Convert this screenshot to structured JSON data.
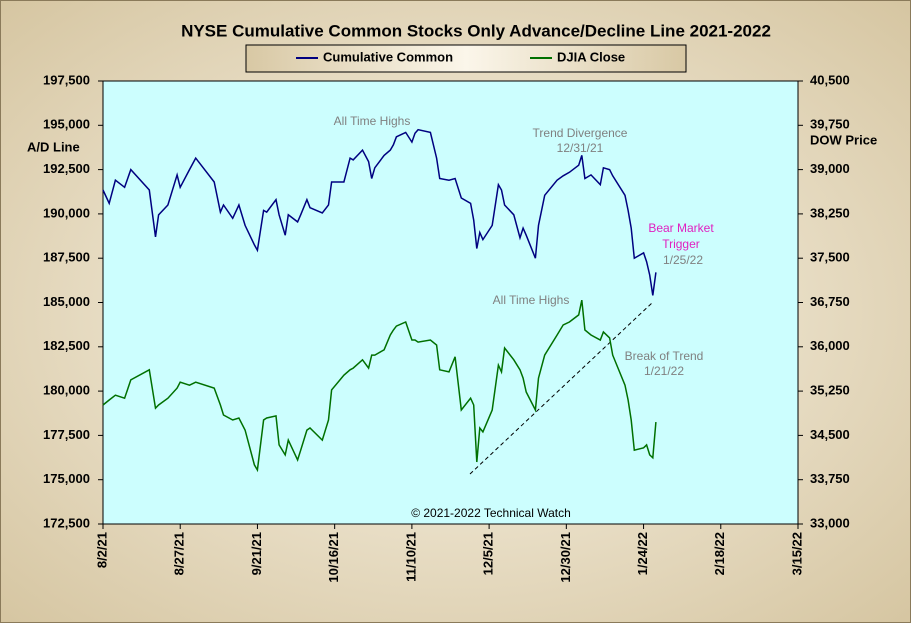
{
  "chart_data": {
    "type": "line",
    "title": "NYSE Cumulative  Common Stocks Only Advance/Decline Line 2021-2022",
    "ylabel": "A/D Line",
    "y2label": "DOW Price",
    "legend": "top",
    "credit": "© 2021-2022  Technical Watch",
    "x": [
      "2021-08-02",
      "2021-08-04",
      "2021-08-06",
      "2021-08-09",
      "2021-08-11",
      "2021-08-17",
      "2021-08-19",
      "2021-08-20",
      "2021-08-23",
      "2021-08-26",
      "2021-08-27",
      "2021-08-30",
      "2021-09-01",
      "2021-09-07",
      "2021-09-09",
      "2021-09-10",
      "2021-09-13",
      "2021-09-15",
      "2021-09-17",
      "2021-09-20",
      "2021-09-21",
      "2021-09-23",
      "2021-09-24",
      "2021-09-27",
      "2021-09-28",
      "2021-09-30",
      "2021-10-01",
      "2021-10-04",
      "2021-10-05",
      "2021-10-07",
      "2021-10-08",
      "2021-10-12",
      "2021-10-14",
      "2021-10-15",
      "2021-10-19",
      "2021-10-21",
      "2021-10-22",
      "2021-10-25",
      "2021-10-27",
      "2021-10-28",
      "2021-10-29",
      "2021-11-01",
      "2021-11-03",
      "2021-11-04",
      "2021-11-05",
      "2021-11-08",
      "2021-11-10",
      "2021-11-11",
      "2021-11-12",
      "2021-11-16",
      "2021-11-18",
      "2021-11-19",
      "2021-11-22",
      "2021-11-24",
      "2021-11-26",
      "2021-11-29",
      "2021-11-30",
      "2021-12-01",
      "2021-12-02",
      "2021-12-03",
      "2021-12-06",
      "2021-12-08",
      "2021-12-09",
      "2021-12-10",
      "2021-12-13",
      "2021-12-15",
      "2021-12-16",
      "2021-12-17",
      "2021-12-20",
      "2021-12-21",
      "2021-12-23",
      "2021-12-27",
      "2021-12-29",
      "2021-12-31",
      "2022-01-03",
      "2022-01-04",
      "2022-01-05",
      "2022-01-07",
      "2022-01-10",
      "2022-01-11",
      "2022-01-13",
      "2022-01-14",
      "2022-01-18",
      "2022-01-19",
      "2022-01-20",
      "2022-01-21",
      "2022-01-24",
      "2022-01-25",
      "2022-01-26",
      "2022-01-27",
      "2022-01-28"
    ],
    "series": [
      {
        "name": "Cumulative Common",
        "color": "#000080",
        "values": [
          191350,
          190600,
          191900,
          191500,
          192500,
          191350,
          188700,
          189950,
          190500,
          192200,
          191500,
          192500,
          193150,
          191800,
          190100,
          190500,
          189750,
          190500,
          189350,
          188250,
          187950,
          190200,
          190100,
          190800,
          189950,
          188800,
          189950,
          189550,
          189950,
          190800,
          190350,
          190050,
          190500,
          191800,
          191800,
          193150,
          193050,
          193600,
          192950,
          192000,
          192600,
          193300,
          193600,
          193900,
          194350,
          194600,
          194050,
          194550,
          194750,
          194600,
          193150,
          192000,
          191900,
          192000,
          190900,
          190600,
          189650,
          188050,
          188950,
          188550,
          189350,
          191650,
          191350,
          190500,
          189950,
          188650,
          189200,
          188800,
          187500,
          189350,
          191050,
          191900,
          192150,
          192350,
          192750,
          193300,
          192000,
          192200,
          191650,
          192600,
          192500,
          192150,
          191050,
          190200,
          189200,
          187500,
          187800,
          187300,
          186550,
          185400,
          186700
        ]
      },
      {
        "name": "DJIA Close",
        "color": "#007000",
        "axis": "y2",
        "values": [
          35015,
          35100,
          35180,
          35130,
          35440,
          35610,
          34960,
          35015,
          35130,
          35300,
          35400,
          35350,
          35400,
          35300,
          35015,
          34845,
          34760,
          34795,
          34590,
          34000,
          33915,
          34760,
          34795,
          34830,
          34340,
          34170,
          34420,
          34085,
          34250,
          34590,
          34625,
          34420,
          34760,
          35270,
          35520,
          35610,
          35640,
          35780,
          35640,
          35860,
          35860,
          35950,
          36200,
          36285,
          36350,
          36420,
          36115,
          36115,
          36080,
          36115,
          36030,
          35610,
          35575,
          35830,
          34930,
          35130,
          35015,
          34050,
          34625,
          34560,
          34930,
          35690,
          35575,
          35980,
          35780,
          35610,
          35470,
          35235,
          34930,
          35470,
          35860,
          36200,
          36370,
          36420,
          36540,
          36790,
          36285,
          36200,
          36115,
          36250,
          36150,
          35860,
          35350,
          35100,
          34760,
          34250,
          34290,
          34340,
          34170,
          34120,
          34725
        ]
      }
    ],
    "xlim": [
      "2021-08-02",
      "2022-03-15"
    ],
    "xticks": [
      {
        "value": "2021-08-02",
        "label": "8/2/21"
      },
      {
        "value": "2021-08-27",
        "label": "8/27/21"
      },
      {
        "value": "2021-09-21",
        "label": "9/21/21"
      },
      {
        "value": "2021-10-16",
        "label": "10/16/21"
      },
      {
        "value": "2021-11-10",
        "label": "11/10/21"
      },
      {
        "value": "2021-12-05",
        "label": "12/5/21"
      },
      {
        "value": "2021-12-30",
        "label": "12/30/21"
      },
      {
        "value": "2022-01-24",
        "label": "1/24/22"
      },
      {
        "value": "2022-02-18",
        "label": "2/18/22"
      },
      {
        "value": "2022-03-15",
        "label": "3/15/22"
      }
    ],
    "ylim": [
      172500,
      197500
    ],
    "yticks": [
      {
        "value": 172500,
        "label": "172,500"
      },
      {
        "value": 175000,
        "label": "175,000"
      },
      {
        "value": 177500,
        "label": "177,500"
      },
      {
        "value": 180000,
        "label": "180,000"
      },
      {
        "value": 182500,
        "label": "182,500"
      },
      {
        "value": 185000,
        "label": "185,000"
      },
      {
        "value": 187500,
        "label": "187,500"
      },
      {
        "value": 190000,
        "label": "190,000"
      },
      {
        "value": 192500,
        "label": "192,500"
      },
      {
        "value": 195000,
        "label": "195,000"
      },
      {
        "value": 197500,
        "label": "197,500"
      }
    ],
    "y2lim": [
      33000,
      40500
    ],
    "y2ticks": [
      {
        "value": 33000,
        "label": "33,000"
      },
      {
        "value": 33750,
        "label": "33,750"
      },
      {
        "value": 34500,
        "label": "34,500"
      },
      {
        "value": 35250,
        "label": "35,250"
      },
      {
        "value": 36000,
        "label": "36,000"
      },
      {
        "value": 36750,
        "label": "36,750"
      },
      {
        "value": 37500,
        "label": "37,500"
      },
      {
        "value": 38250,
        "label": "38,250"
      },
      {
        "value": 39000,
        "label": "39,000"
      },
      {
        "value": 39750,
        "label": "39,750"
      },
      {
        "value": 40500,
        "label": "40,500"
      }
    ],
    "annotations": [
      {
        "text": "All Time Highs",
        "color": "#808080"
      },
      {
        "text": "Trend  Divergence",
        "color": "#808080"
      },
      {
        "text": "12/31/21",
        "color": "#808080"
      },
      {
        "text": "Bear Market",
        "color": "#e020c0"
      },
      {
        "text": "Trigger",
        "color": "#e020c0"
      },
      {
        "text": "1/25/22",
        "color": "#808080"
      },
      {
        "text": "All Time Highs",
        "color": "#808080"
      },
      {
        "text": "Break of Trend",
        "color": "#808080"
      },
      {
        "text": "1/21/22",
        "color": "#808080"
      }
    ]
  }
}
